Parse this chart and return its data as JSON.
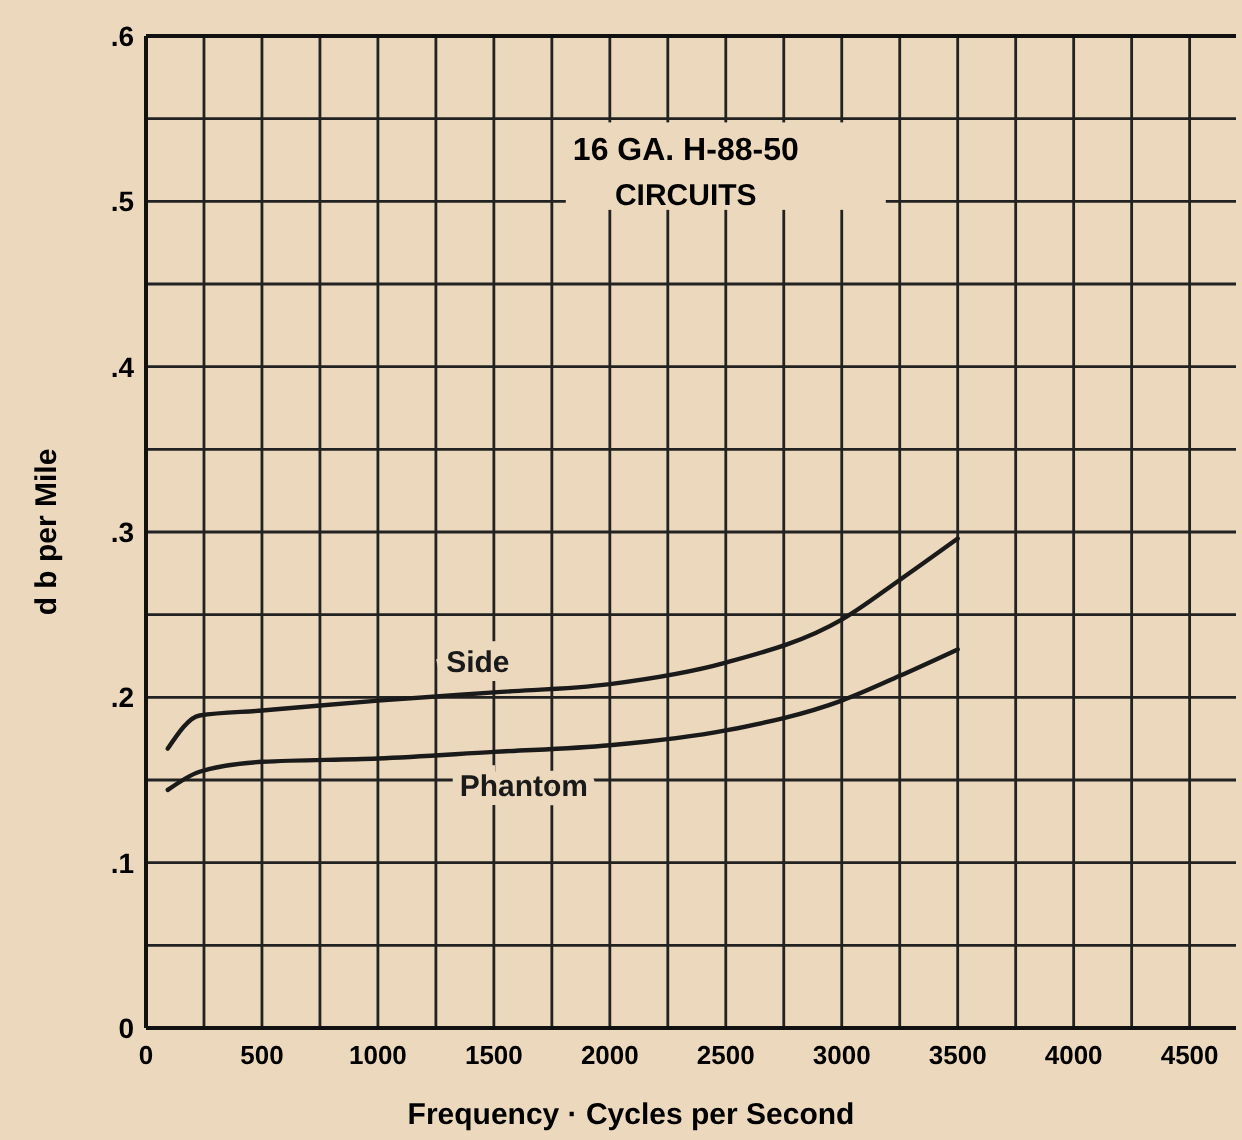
{
  "chart_data": {
    "type": "line",
    "title": "16 GA. H-88-50",
    "subtitle": "CIRCUITS",
    "xlabel": "Frequency · Cycles per Second",
    "ylabel": "d b per Mile",
    "x": [
      94,
      231,
      500,
      1000,
      1500,
      2000,
      2500,
      3000,
      3250,
      3500
    ],
    "series": [
      {
        "name": "Side",
        "color": "#1a1a1a",
        "values": [
          0.169,
          0.189,
          0.192,
          0.198,
          0.203,
          0.208,
          0.221,
          0.247,
          0.271,
          0.296
        ]
      },
      {
        "name": "Phantom",
        "color": "#1a1a1a",
        "values": [
          0.144,
          0.155,
          0.161,
          0.163,
          0.167,
          0.171,
          0.18,
          0.198,
          0.213,
          0.229
        ]
      }
    ],
    "xlim": [
      0,
      4700
    ],
    "xticks": [
      0,
      {
        "value": 250,
        "label": null
      },
      500,
      {
        "value": 750,
        "label": null
      },
      1000,
      {
        "value": 1250,
        "label": null
      },
      1500,
      {
        "value": 1750,
        "label": null
      },
      2000,
      {
        "value": 2250,
        "label": null
      },
      2500,
      {
        "value": 2750,
        "label": null
      },
      3000,
      {
        "value": 3250,
        "label": null
      },
      3500,
      {
        "value": 3750,
        "label": null
      },
      4000,
      {
        "value": 4250,
        "label": null
      },
      4500
    ],
    "ylim": [
      0,
      0.6
    ],
    "yticks": [
      0,
      {
        "value": 0.05,
        "label": null
      },
      {
        "value": 0.1,
        "label": ".1"
      },
      {
        "value": 0.15,
        "label": null
      },
      {
        "value": 0.2,
        "label": ".2"
      },
      {
        "value": 0.25,
        "label": null
      },
      {
        "value": 0.3,
        "label": ".3"
      },
      {
        "value": 0.35,
        "label": null
      },
      {
        "value": 0.4,
        "label": ".4"
      },
      {
        "value": 0.45,
        "label": null
      },
      {
        "value": 0.5,
        "label": ".5"
      },
      {
        "value": 0.55,
        "label": null
      },
      {
        "value": 0.6,
        "label": ".6"
      }
    ],
    "grid": true,
    "line_style": "solid",
    "marker": "none"
  }
}
